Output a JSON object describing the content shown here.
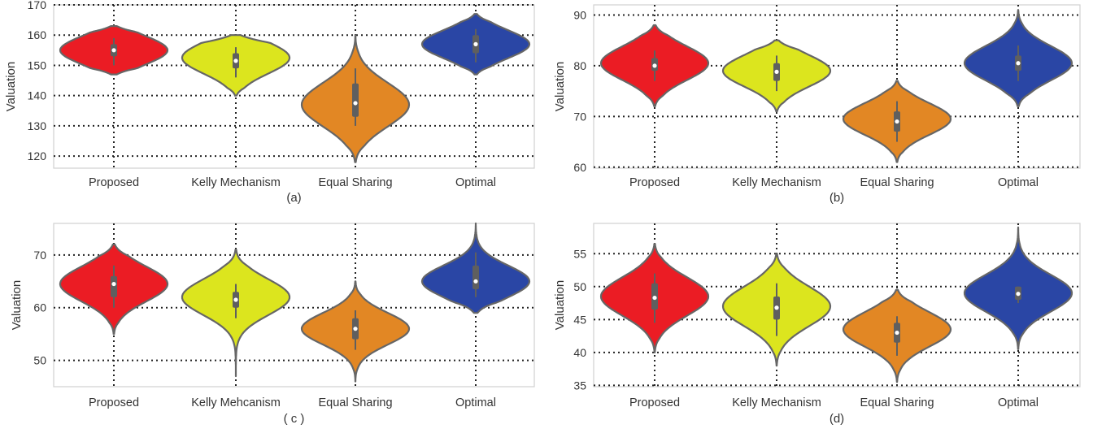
{
  "chart_data": [
    {
      "type": "violin",
      "caption": "(a)",
      "ylabel": "Valuation",
      "ylim": [
        116,
        170
      ],
      "yticks": [
        120,
        130,
        140,
        150,
        160,
        170
      ],
      "categories": [
        "Proposed",
        "Kelly Mechanism",
        "Equal Sharing",
        "Optimal"
      ],
      "colors": [
        "#eb1c24",
        "#dce51e",
        "#e28724",
        "#2a46a5"
      ],
      "grid": true,
      "violins": [
        {
          "min": 147,
          "max": 163,
          "q1": 153,
          "median": 155,
          "q3": 157,
          "whisker_low": 150,
          "whisker_high": 159,
          "peak": 155,
          "spread": 4.6
        },
        {
          "min": 140,
          "max": 160,
          "q1": 149,
          "median": 151.5,
          "q3": 154,
          "whisker_low": 146,
          "whisker_high": 156,
          "peak": 152.5,
          "spread": 5.2
        },
        {
          "min": 118,
          "max": 160,
          "q1": 133,
          "median": 137.5,
          "q3": 144,
          "whisker_low": 130,
          "whisker_high": 149,
          "peak": 137,
          "spread": 7.2
        },
        {
          "min": 147,
          "max": 167,
          "q1": 154,
          "median": 157,
          "q3": 160,
          "whisker_low": 151,
          "whisker_high": 162,
          "peak": 157,
          "spread": 4.6
        }
      ]
    },
    {
      "type": "violin",
      "caption": "(b)",
      "ylabel": "Valuation",
      "ylim": [
        59.8,
        92
      ],
      "yticks": [
        60,
        70,
        80,
        90
      ],
      "categories": [
        "Proposed",
        "Kelly Mechanism",
        "Equal Sharing",
        "Optimal"
      ],
      "colors": [
        "#eb1c24",
        "#dce51e",
        "#e28724",
        "#2a46a5"
      ],
      "grid": true,
      "violins": [
        {
          "min": 72,
          "max": 88,
          "q1": 79,
          "median": 80,
          "q3": 81.5,
          "whisker_low": 77,
          "whisker_high": 83,
          "peak": 80.5,
          "spread": 3.3
        },
        {
          "min": 71,
          "max": 85,
          "q1": 77,
          "median": 78.8,
          "q3": 80.5,
          "whisker_low": 75,
          "whisker_high": 82,
          "peak": 79,
          "spread": 3.1
        },
        {
          "min": 61,
          "max": 77,
          "q1": 67,
          "median": 69,
          "q3": 71,
          "whisker_low": 65,
          "whisker_high": 73,
          "peak": 69.5,
          "spread": 3.1
        },
        {
          "min": 72,
          "max": 91,
          "q1": 79,
          "median": 80.5,
          "q3": 82,
          "whisker_low": 77,
          "whisker_high": 84,
          "peak": 80.5,
          "spread": 3.4
        }
      ]
    },
    {
      "type": "violin",
      "caption": "( c )",
      "ylabel": "Valuation",
      "ylim": [
        45,
        76
      ],
      "yticks": [
        50,
        60,
        70
      ],
      "categories": [
        "Proposed",
        "Kelly Mehcanism",
        "Equal Sharing",
        "Optimal"
      ],
      "colors": [
        "#eb1c24",
        "#dce51e",
        "#e28724",
        "#2a46a5"
      ],
      "grid": true,
      "violins": [
        {
          "min": 55,
          "max": 72,
          "q1": 62,
          "median": 64.5,
          "q3": 66,
          "whisker_low": 60,
          "whisker_high": 68,
          "peak": 64.5,
          "spread": 3.3
        },
        {
          "min": 47,
          "max": 71,
          "q1": 60,
          "median": 61.5,
          "q3": 63,
          "whisker_low": 58,
          "whisker_high": 64.5,
          "peak": 62,
          "spread": 3.4
        },
        {
          "min": 46,
          "max": 65,
          "q1": 54,
          "median": 56,
          "q3": 58,
          "whisker_low": 52,
          "whisker_high": 59.5,
          "peak": 56,
          "spread": 3.0
        },
        {
          "min": 59,
          "max": 76,
          "q1": 63.5,
          "median": 65,
          "q3": 68,
          "whisker_low": 62,
          "whisker_high": 70.5,
          "peak": 65,
          "spread": 3.0
        }
      ]
    },
    {
      "type": "violin",
      "caption": "(d)",
      "ylabel": "Valuation",
      "ylim": [
        34.8,
        59.6
      ],
      "yticks": [
        35,
        40,
        45,
        50,
        55
      ],
      "categories": [
        "Proposed",
        "Kelly Mechanism",
        "Equal Sharing",
        "Optimal"
      ],
      "colors": [
        "#eb1c24",
        "#dce51e",
        "#e28724",
        "#2a46a5"
      ],
      "grid": true,
      "violins": [
        {
          "min": 40,
          "max": 56.5,
          "q1": 46.5,
          "median": 48.3,
          "q3": 50.5,
          "whisker_low": 44.5,
          "whisker_high": 52,
          "peak": 48.5,
          "spread": 2.9
        },
        {
          "min": 38,
          "max": 55,
          "q1": 45,
          "median": 46.8,
          "q3": 48.5,
          "whisker_low": 42.5,
          "whisker_high": 50.5,
          "peak": 47,
          "spread": 3.0
        },
        {
          "min": 35.5,
          "max": 49.5,
          "q1": 41.5,
          "median": 43,
          "q3": 44.5,
          "whisker_low": 39.5,
          "whisker_high": 45.5,
          "peak": 43.5,
          "spread": 2.6
        },
        {
          "min": 40.5,
          "max": 59,
          "q1": 48,
          "median": 48.9,
          "q3": 50,
          "whisker_low": 47.5,
          "whisker_high": 50,
          "peak": 49,
          "spread": 2.8
        }
      ]
    }
  ]
}
